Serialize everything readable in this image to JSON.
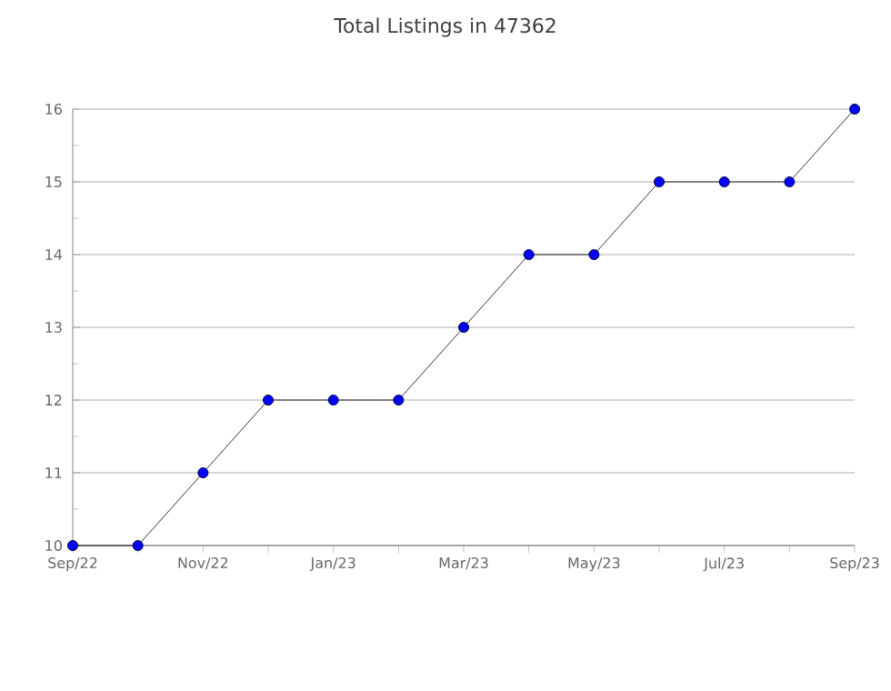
{
  "chart_data": {
    "type": "line",
    "title": "Total Listings in 47362",
    "categories": [
      "Sep/22",
      null,
      "Nov/22",
      null,
      "Jan/23",
      null,
      "Mar/23",
      null,
      "May/23",
      null,
      "Jul/23",
      null,
      "Sep/23"
    ],
    "series": [
      {
        "color": "#0000ff",
        "values": [
          10,
          10,
          11,
          12,
          12,
          12,
          13,
          14,
          14,
          15,
          15,
          15,
          16
        ]
      }
    ],
    "ylim": [
      10,
      16
    ],
    "yticks": [
      10,
      11,
      12,
      13,
      14,
      15,
      16
    ],
    "grid": "y",
    "marker": "circle",
    "line_style": "solid"
  }
}
